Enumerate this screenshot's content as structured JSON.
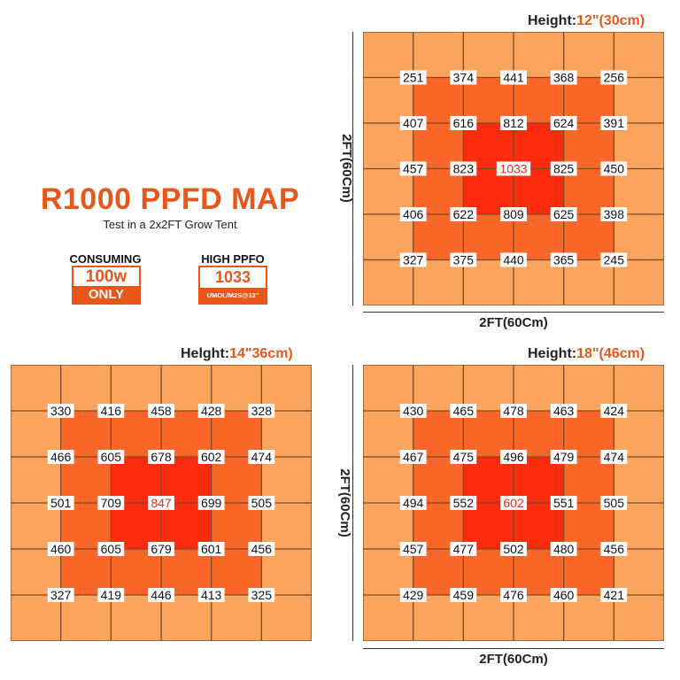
{
  "title": "R1000 PPFD MAP",
  "subtitle": "Test in a 2x2FT Grow Tent",
  "badges": {
    "consuming": {
      "label": "CONSUMING",
      "value": "100w",
      "sub": "ONLY"
    },
    "ppfd": {
      "label": "HIGH PPFO",
      "value": "1033",
      "sub": "UMOL/M2S@12\""
    }
  },
  "colors": {
    "outer": "#fba45e",
    "mid": "#fb6729",
    "center": "#fc2d0f",
    "accent": "#e8561a",
    "line": "#7a4a2a"
  },
  "chart_data": [
    {
      "type": "heatmap",
      "title_prefix": "Height:",
      "title_value": "12\"(30cm)",
      "xlabel": "2FT(60Cm)",
      "ylabel": "2FT(60Cm)",
      "rows": [
        [
          251,
          374,
          441,
          368,
          256
        ],
        [
          407,
          616,
          812,
          624,
          391
        ],
        [
          457,
          823,
          1033,
          825,
          450
        ],
        [
          406,
          622,
          809,
          625,
          398
        ],
        [
          327,
          375,
          440,
          365,
          245
        ]
      ],
      "peak": [
        2,
        2
      ]
    },
    {
      "type": "heatmap",
      "title_prefix": "Helght:",
      "title_value": "14\"36cm)",
      "xlabel": "",
      "ylabel": "",
      "rows": [
        [
          330,
          416,
          458,
          428,
          328
        ],
        [
          466,
          605,
          678,
          602,
          474
        ],
        [
          501,
          709,
          847,
          699,
          505
        ],
        [
          460,
          605,
          679,
          601,
          456
        ],
        [
          327,
          419,
          446,
          413,
          325
        ]
      ],
      "peak": [
        2,
        2
      ]
    },
    {
      "type": "heatmap",
      "title_prefix": "Height:",
      "title_value": "18\"(46cm)",
      "xlabel": "2FT(60Cm)",
      "ylabel": "2FT(60Cm)",
      "rows": [
        [
          430,
          465,
          478,
          463,
          424
        ],
        [
          467,
          475,
          496,
          479,
          474
        ],
        [
          494,
          552,
          602,
          551,
          505
        ],
        [
          457,
          477,
          502,
          480,
          456
        ],
        [
          429,
          459,
          476,
          460,
          421
        ]
      ],
      "peak": [
        2,
        2
      ]
    }
  ]
}
